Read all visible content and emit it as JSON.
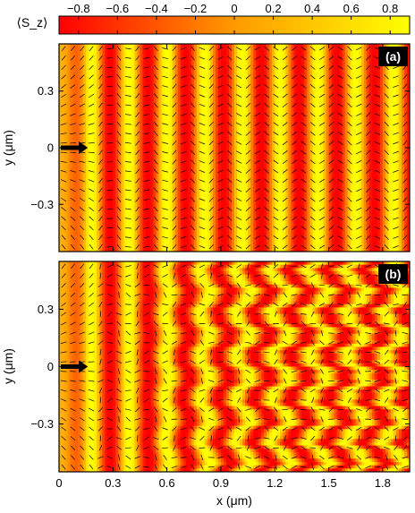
{
  "chart_data": [
    {
      "type": "heatmap",
      "panel": "(a)",
      "pattern": "straight-stripes",
      "colorbar": {
        "label": "⟨S_z⟩",
        "ticks": [
          -0.8,
          -0.6,
          -0.4,
          -0.2,
          0,
          0.2,
          0.4,
          0.6,
          0.8
        ],
        "tick_labels": [
          "−0.8",
          "−0.6",
          "−0.4",
          "−0.2",
          "0",
          "0.2",
          "0.4",
          "0.6",
          "0.8"
        ],
        "range": [
          -0.9,
          0.9
        ],
        "colors": [
          "#ff0000",
          "#ff9a00",
          "#ffff00"
        ]
      },
      "xlim": [
        0,
        1.95
      ],
      "ylim": [
        -0.55,
        0.55
      ],
      "yticks": [
        -0.3,
        0,
        0.3
      ],
      "ytick_labels": [
        "−0.3",
        "0",
        "0.3"
      ],
      "ylabel": "y (μm)",
      "xlabel": "",
      "wavelength_um": 0.21,
      "stripe_start_um": 0.18,
      "injection_arrow_at": [
        0.1,
        0
      ]
    },
    {
      "type": "heatmap",
      "panel": "(b)",
      "pattern": "zigzag-stripes",
      "xlim": [
        0,
        1.95
      ],
      "ylim": [
        -0.55,
        0.55
      ],
      "xticks": [
        0,
        0.3,
        0.6,
        0.9,
        1.2,
        1.5,
        1.8
      ],
      "xtick_labels": [
        "0",
        "0.3",
        "0.6",
        "0.9",
        "1.2",
        "1.5",
        "1.8"
      ],
      "yticks": [
        -0.3,
        0,
        0.3
      ],
      "ytick_labels": [
        "−0.3",
        "0",
        "0.3"
      ],
      "xlabel": "x (μm)",
      "ylabel": "y (μm)",
      "wavelength_um": 0.21,
      "stripe_start_um": 0.18,
      "injection_arrow_at": [
        0.1,
        0
      ]
    }
  ]
}
